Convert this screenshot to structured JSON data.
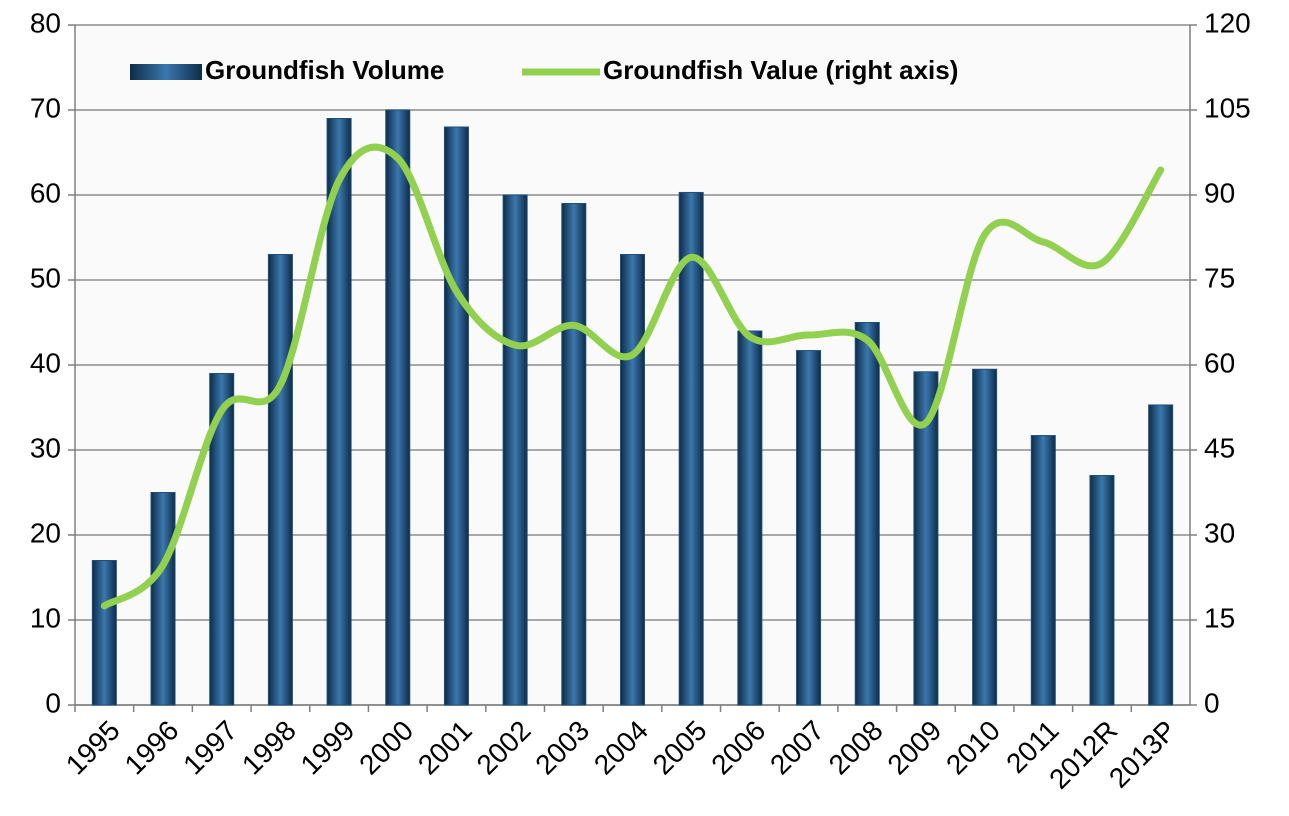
{
  "chart_data": {
    "type": "bar_line",
    "categories": [
      "1995",
      "1996",
      "1997",
      "1998",
      "1999",
      "2000",
      "2001",
      "2002",
      "2003",
      "2004",
      "2005",
      "2006",
      "2007",
      "2008",
      "2009",
      "2010",
      "2011",
      "2012R",
      "2013P"
    ],
    "series": [
      {
        "name": "Groundfish Volume",
        "type": "bar",
        "color": "#1f4e79",
        "values": [
          17,
          25,
          39,
          53,
          69,
          70,
          68,
          60,
          59,
          53,
          60.3,
          44,
          41.7,
          45,
          39.2,
          39.5,
          31.7,
          27,
          35.3
        ]
      },
      {
        "name": "Groundfish Value (right axis)",
        "type": "line",
        "axis": "y2",
        "color": "#92d050",
        "values": [
          17.5,
          24.7,
          52,
          56.5,
          92.6,
          96.5,
          73,
          63.5,
          67,
          61.8,
          79,
          65,
          65.3,
          64.4,
          49.8,
          83,
          81.7,
          78,
          94.4
        ]
      }
    ],
    "ylim": [
      0,
      80
    ],
    "yticks": [
      0,
      10,
      20,
      30,
      40,
      50,
      60,
      70,
      80
    ],
    "y2lim": [
      0,
      120
    ],
    "y2ticks": [
      0,
      15,
      30,
      45,
      60,
      75,
      90,
      105,
      120
    ],
    "grid": true,
    "legend": "top-left"
  }
}
